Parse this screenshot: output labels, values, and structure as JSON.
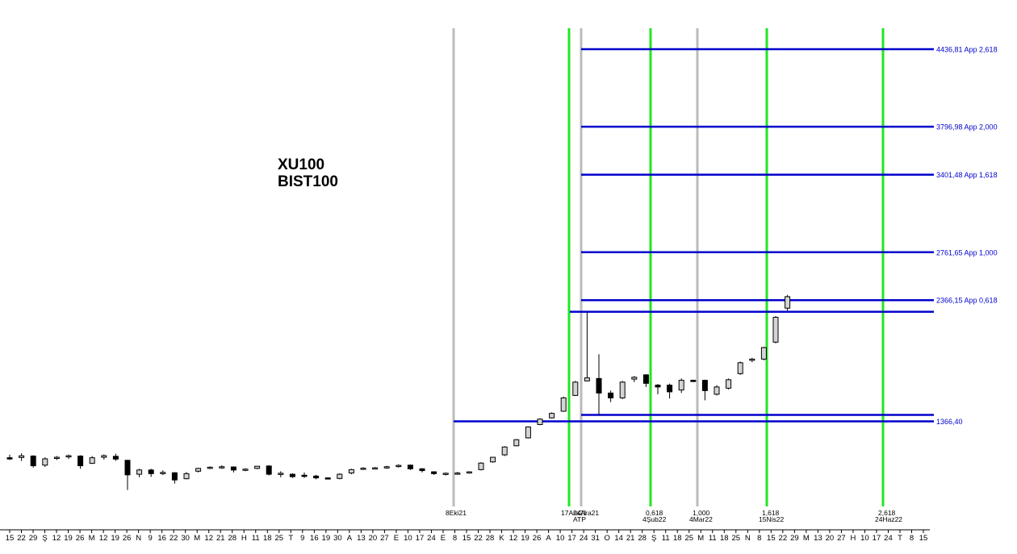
{
  "chart_data": {
    "type": "candlestick",
    "title": [
      "XU100",
      "BIST100"
    ],
    "ylim": [
      700,
      4550
    ],
    "date_ticks": [
      "15",
      "22",
      "29",
      "Ş",
      "12",
      "19",
      "26",
      "M",
      "12",
      "19",
      "26",
      "N",
      "9",
      "16",
      "22",
      "30",
      "M",
      "12",
      "21",
      "28",
      "H",
      "11",
      "18",
      "25",
      "T",
      "9",
      "16",
      "19",
      "30",
      "A",
      "13",
      "20",
      "27",
      "E",
      "10",
      "17",
      "24",
      "E",
      "8",
      "15",
      "22",
      "28",
      "K",
      "12",
      "19",
      "26",
      "A",
      "10",
      "17",
      "24",
      "31",
      "O",
      "14",
      "21",
      "28",
      "Ş",
      "11",
      "18",
      "25",
      "M",
      "11",
      "18",
      "25",
      "N",
      "8",
      "15",
      "22",
      "29",
      "M",
      "13",
      "20",
      "27",
      "H",
      "10",
      "17",
      "24",
      "T",
      "8",
      "15"
    ],
    "candles": [
      {
        "o": 1066,
        "h": 1092,
        "l": 1048,
        "c": 1060
      },
      {
        "o": 1068,
        "h": 1103,
        "l": 1040,
        "c": 1082
      },
      {
        "o": 1080,
        "h": 1087,
        "l": 985,
        "c": 1000
      },
      {
        "o": 1005,
        "h": 1070,
        "l": 990,
        "c": 1057
      },
      {
        "o": 1066,
        "h": 1080,
        "l": 1048,
        "c": 1070
      },
      {
        "o": 1077,
        "h": 1093,
        "l": 1055,
        "c": 1083
      },
      {
        "o": 1080,
        "h": 1087,
        "l": 975,
        "c": 1000
      },
      {
        "o": 1020,
        "h": 1080,
        "l": 1015,
        "c": 1066
      },
      {
        "o": 1070,
        "h": 1094,
        "l": 1051,
        "c": 1083
      },
      {
        "o": 1078,
        "h": 1100,
        "l": 1040,
        "c": 1055
      },
      {
        "o": 1045,
        "h": 1048,
        "l": 800,
        "c": 925
      },
      {
        "o": 930,
        "h": 975,
        "l": 905,
        "c": 965
      },
      {
        "o": 965,
        "h": 975,
        "l": 908,
        "c": 935
      },
      {
        "o": 935,
        "h": 962,
        "l": 923,
        "c": 945
      },
      {
        "o": 942,
        "h": 948,
        "l": 853,
        "c": 883
      },
      {
        "o": 893,
        "h": 948,
        "l": 888,
        "c": 935
      },
      {
        "o": 955,
        "h": 983,
        "l": 945,
        "c": 978
      },
      {
        "o": 982,
        "h": 995,
        "l": 972,
        "c": 988
      },
      {
        "o": 990,
        "h": 1005,
        "l": 975,
        "c": 992
      },
      {
        "o": 990,
        "h": 995,
        "l": 945,
        "c": 965
      },
      {
        "o": 968,
        "h": 980,
        "l": 955,
        "c": 972
      },
      {
        "o": 978,
        "h": 998,
        "l": 972,
        "c": 996
      },
      {
        "o": 998,
        "h": 1005,
        "l": 920,
        "c": 930
      },
      {
        "o": 930,
        "h": 955,
        "l": 905,
        "c": 938
      },
      {
        "o": 930,
        "h": 938,
        "l": 900,
        "c": 910
      },
      {
        "o": 922,
        "h": 945,
        "l": 900,
        "c": 918
      },
      {
        "o": 915,
        "h": 925,
        "l": 888,
        "c": 900
      },
      {
        "o": 900,
        "h": 905,
        "l": 890,
        "c": 895
      },
      {
        "o": 895,
        "h": 938,
        "l": 888,
        "c": 930
      },
      {
        "o": 940,
        "h": 975,
        "l": 930,
        "c": 968
      },
      {
        "o": 975,
        "h": 988,
        "l": 965,
        "c": 980
      },
      {
        "o": 982,
        "h": 990,
        "l": 970,
        "c": 983
      },
      {
        "o": 985,
        "h": 1000,
        "l": 975,
        "c": 992
      },
      {
        "o": 995,
        "h": 1012,
        "l": 985,
        "c": 1003
      },
      {
        "o": 1005,
        "h": 1010,
        "l": 965,
        "c": 975
      },
      {
        "o": 975,
        "h": 980,
        "l": 945,
        "c": 960
      },
      {
        "o": 950,
        "h": 955,
        "l": 925,
        "c": 935
      },
      {
        "o": 932,
        "h": 945,
        "l": 920,
        "c": 938
      },
      {
        "o": 938,
        "h": 950,
        "l": 925,
        "c": 940
      },
      {
        "o": 940,
        "h": 955,
        "l": 935,
        "c": 950
      },
      {
        "o": 968,
        "h": 1030,
        "l": 962,
        "c": 1022
      },
      {
        "o": 1032,
        "h": 1072,
        "l": 1025,
        "c": 1070
      },
      {
        "o": 1090,
        "h": 1162,
        "l": 1080,
        "c": 1155
      },
      {
        "o": 1165,
        "h": 1220,
        "l": 1160,
        "c": 1215
      },
      {
        "o": 1230,
        "h": 1325,
        "l": 1225,
        "c": 1320
      },
      {
        "o": 1340,
        "h": 1392,
        "l": 1335,
        "c": 1385
      },
      {
        "o": 1395,
        "h": 1440,
        "l": 1390,
        "c": 1432
      },
      {
        "o": 1450,
        "h": 1570,
        "l": 1445,
        "c": 1560
      },
      {
        "o": 1580,
        "h": 1700,
        "l": 1575,
        "c": 1690
      },
      {
        "o": 1700,
        "h": 2270,
        "l": 1695,
        "c": 1725
      },
      {
        "o": 1720,
        "h": 1920,
        "l": 1420,
        "c": 1600
      },
      {
        "o": 1600,
        "h": 1620,
        "l": 1525,
        "c": 1560
      },
      {
        "o": 1560,
        "h": 1700,
        "l": 1550,
        "c": 1690
      },
      {
        "o": 1715,
        "h": 1740,
        "l": 1690,
        "c": 1730
      },
      {
        "o": 1750,
        "h": 1755,
        "l": 1650,
        "c": 1680
      },
      {
        "o": 1665,
        "h": 1675,
        "l": 1590,
        "c": 1650
      },
      {
        "o": 1665,
        "h": 1678,
        "l": 1555,
        "c": 1610
      },
      {
        "o": 1625,
        "h": 1720,
        "l": 1600,
        "c": 1705
      },
      {
        "o": 1705,
        "h": 1710,
        "l": 1690,
        "c": 1700
      },
      {
        "o": 1705,
        "h": 1710,
        "l": 1540,
        "c": 1620
      },
      {
        "o": 1590,
        "h": 1665,
        "l": 1580,
        "c": 1650
      },
      {
        "o": 1640,
        "h": 1720,
        "l": 1630,
        "c": 1710
      },
      {
        "o": 1760,
        "h": 1860,
        "l": 1750,
        "c": 1850
      },
      {
        "o": 1870,
        "h": 1890,
        "l": 1855,
        "c": 1880
      },
      {
        "o": 1880,
        "h": 1982,
        "l": 1870,
        "c": 1975
      },
      {
        "o": 2020,
        "h": 2235,
        "l": 2010,
        "c": 2225
      },
      {
        "o": 2300,
        "h": 2410,
        "l": 2280,
        "c": 2395
      }
    ],
    "levels": [
      {
        "value": 4436.81,
        "label": "4436,81 App 2,618"
      },
      {
        "value": 3796.98,
        "label": "3796,98 App 2,000"
      },
      {
        "value": 3401.48,
        "label": "3401,48 App 1,618"
      },
      {
        "value": 2761.65,
        "label": "2761,65 App 1,000"
      },
      {
        "value": 2366.15,
        "label": "2366,15 App 0,618"
      },
      {
        "value": 2270,
        "label": ""
      },
      {
        "value": 1420,
        "label": ""
      },
      {
        "value": 1366.4,
        "label": "1366,40"
      }
    ],
    "time_lines": [
      {
        "color": "#bbbbbb",
        "ratio": "",
        "date": "8Eki21"
      },
      {
        "color": "#22e622",
        "ratio": "",
        "date": "17Ara21"
      },
      {
        "color": "#bbbbbb",
        "ratio": "",
        "date": "24Ara21"
      },
      {
        "color": "#22e622",
        "ratio": "0,618",
        "date": "4Şub22"
      },
      {
        "color": "#bbbbbb",
        "ratio": "1,000",
        "date": "4Mar22"
      },
      {
        "color": "#22e622",
        "ratio": "1,618",
        "date": "15Nis22"
      },
      {
        "color": "#22e622",
        "ratio": "2,618",
        "date": "24Haz22"
      }
    ],
    "atp_label": "ATP",
    "colors": {
      "up": "#d4d4d4",
      "down": "#000000",
      "levels": "#0000cc"
    }
  }
}
